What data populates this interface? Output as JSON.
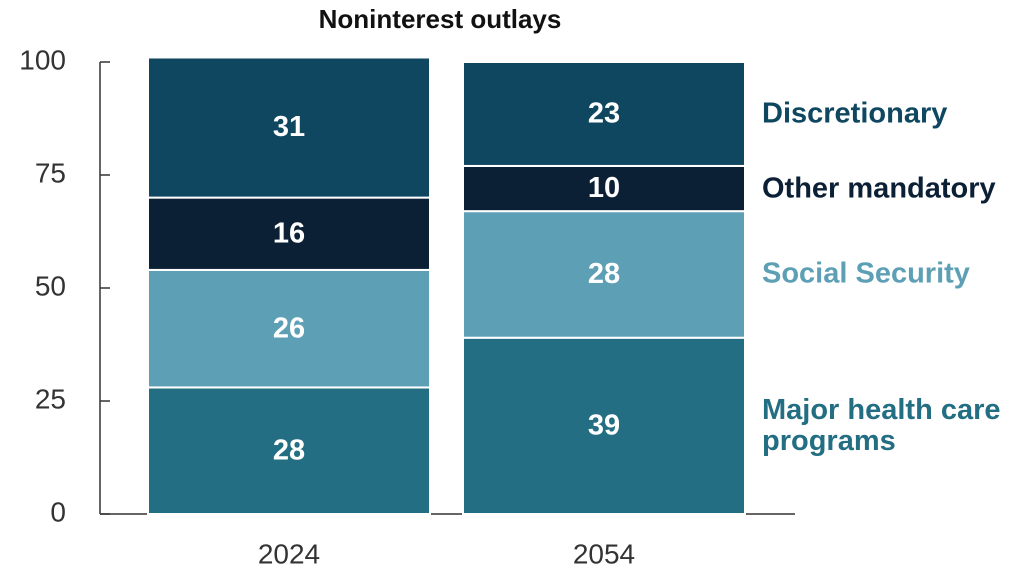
{
  "chart_data": {
    "type": "stacked_bar",
    "title": "Noninterest outlays",
    "categories": [
      "2024",
      "2054"
    ],
    "series": [
      {
        "name": "Major health care programs",
        "color": "#236e82",
        "values": [
          28,
          39
        ]
      },
      {
        "name": "Social Security",
        "color": "#5d9fb5",
        "values": [
          26,
          28
        ]
      },
      {
        "name": "Other mandatory",
        "color": "#0c2035",
        "values": [
          16,
          10
        ]
      },
      {
        "name": "Discretionary",
        "color": "#0f4760",
        "values": [
          31,
          23
        ]
      }
    ],
    "ylim": [
      0,
      100
    ],
    "yticks": [
      0,
      25,
      50,
      75,
      100
    ]
  }
}
